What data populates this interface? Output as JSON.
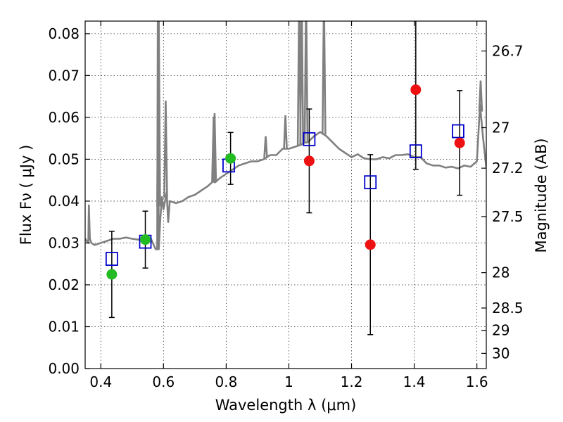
{
  "chart_data": {
    "type": "scatter",
    "title": "",
    "xlabel": "Wavelength  λ (μm)",
    "ylabel": "Flux  Fν  ( μJy )",
    "y2label": "Magnitude (AB)",
    "xlim": [
      0.35,
      1.63
    ],
    "ylim": [
      0.0,
      0.083
    ],
    "grid": true,
    "x_ticks": [
      {
        "value": 0.4,
        "label": "0.4"
      },
      {
        "value": 0.6,
        "label": "0.6"
      },
      {
        "value": 0.8,
        "label": "0.8"
      },
      {
        "value": 1.0,
        "label": "1"
      },
      {
        "value": 1.2,
        "label": "1.2"
      },
      {
        "value": 1.4,
        "label": "1.4"
      },
      {
        "value": 1.6,
        "label": "1.6"
      }
    ],
    "y_ticks": [
      {
        "value": 0.0,
        "label": "0.00"
      },
      {
        "value": 0.01,
        "label": "0.01"
      },
      {
        "value": 0.02,
        "label": "0.02"
      },
      {
        "value": 0.03,
        "label": "0.03"
      },
      {
        "value": 0.04,
        "label": "0.04"
      },
      {
        "value": 0.05,
        "label": "0.05"
      },
      {
        "value": 0.06,
        "label": "0.06"
      },
      {
        "value": 0.07,
        "label": "0.07"
      },
      {
        "value": 0.08,
        "label": "0.08"
      }
    ],
    "y2_ticks": [
      {
        "value": 26.7,
        "label": "26.7"
      },
      {
        "value": 27.0,
        "label": "27"
      },
      {
        "value": 27.2,
        "label": "27.2"
      },
      {
        "value": 27.5,
        "label": "27.5"
      },
      {
        "value": 28.0,
        "label": "28"
      },
      {
        "value": 28.5,
        "label": "28.5"
      },
      {
        "value": 29.0,
        "label": "29"
      },
      {
        "value": 30.0,
        "label": "30"
      }
    ],
    "colors": {
      "model": "#808080",
      "observed_optical": "#22bb22",
      "observed_ir": "#ee1111",
      "model_box": "#0000cc",
      "errorbar": "#000000"
    },
    "observed": [
      {
        "x": 0.435,
        "y": 0.0225,
        "err": 0.0103,
        "band": "optical"
      },
      {
        "x": 0.542,
        "y": 0.0308,
        "err": 0.0068,
        "band": "optical"
      },
      {
        "x": 0.814,
        "y": 0.0502,
        "err": 0.0062,
        "band": "optical"
      },
      {
        "x": 1.065,
        "y": 0.0496,
        "err": 0.0124,
        "band": "ir"
      },
      {
        "x": 1.26,
        "y": 0.0296,
        "err": 0.0215,
        "band": "ir"
      },
      {
        "x": 1.405,
        "y": 0.0666,
        "err": 0.019,
        "band": "ir"
      },
      {
        "x": 1.545,
        "y": 0.0539,
        "err": 0.0125,
        "band": "ir"
      }
    ],
    "model_photometry": [
      {
        "x": 0.435,
        "y": 0.0262
      },
      {
        "x": 0.542,
        "y": 0.0303
      },
      {
        "x": 0.808,
        "y": 0.0485
      },
      {
        "x": 1.065,
        "y": 0.0548
      },
      {
        "x": 1.26,
        "y": 0.0445
      },
      {
        "x": 1.405,
        "y": 0.0519
      },
      {
        "x": 1.54,
        "y": 0.0567
      }
    ],
    "model_spectrum": {
      "x": [
        0.35,
        0.36,
        0.362,
        0.365,
        0.37,
        0.38,
        0.4,
        0.42,
        0.44,
        0.46,
        0.48,
        0.5,
        0.52,
        0.54,
        0.56,
        0.575,
        0.58,
        0.582,
        0.585,
        0.59,
        0.595,
        0.6,
        0.61,
        0.615,
        0.62,
        0.64,
        0.66,
        0.68,
        0.7,
        0.72,
        0.74,
        0.755,
        0.76,
        0.762,
        0.765,
        0.78,
        0.8,
        0.82,
        0.84,
        0.86,
        0.88,
        0.9,
        0.92,
        0.94,
        0.96,
        0.98,
        1.0,
        1.02,
        1.04,
        1.05,
        1.06,
        1.08,
        1.1,
        1.12,
        1.14,
        1.16,
        1.18,
        1.2,
        1.22,
        1.24,
        1.26,
        1.28,
        1.3,
        1.32,
        1.34,
        1.36,
        1.38,
        1.4,
        1.42,
        1.44,
        1.46,
        1.48,
        1.5,
        1.52,
        1.54,
        1.56,
        1.58,
        1.6,
        1.61,
        1.62,
        1.63
      ],
      "y": [
        0.031,
        0.03,
        0.039,
        0.031,
        0.03,
        0.0295,
        0.03,
        0.0305,
        0.031,
        0.031,
        0.0313,
        0.031,
        0.0308,
        0.0313,
        0.031,
        0.0285,
        0.0285,
        0.09,
        0.0285,
        0.036,
        0.041,
        0.038,
        0.042,
        0.035,
        0.04,
        0.0395,
        0.04,
        0.041,
        0.0415,
        0.0425,
        0.0435,
        0.0445,
        0.06,
        0.0445,
        0.0445,
        0.0455,
        0.0465,
        0.0475,
        0.0485,
        0.049,
        0.0495,
        0.0495,
        0.05,
        0.051,
        0.051,
        0.0525,
        0.0525,
        0.053,
        0.0535,
        0.054,
        0.054,
        0.0555,
        0.0565,
        0.0555,
        0.054,
        0.0525,
        0.0515,
        0.0505,
        0.0512,
        0.0502,
        0.05,
        0.05,
        0.0505,
        0.0502,
        0.051,
        0.051,
        0.0512,
        0.0505,
        0.0505,
        0.049,
        0.0485,
        0.0485,
        0.048,
        0.0482,
        0.0478,
        0.0485,
        0.0482,
        0.0495,
        0.063,
        0.055,
        0.048
      ]
    },
    "emission_lines": [
      {
        "x": 0.5845,
        "y": 0.09
      },
      {
        "x": 0.607,
        "y": 0.064
      },
      {
        "x": 0.763,
        "y": 0.061
      },
      {
        "x": 0.926,
        "y": 0.0555
      },
      {
        "x": 0.989,
        "y": 0.0605
      },
      {
        "x": 1.033,
        "y": 0.09
      },
      {
        "x": 1.041,
        "y": 0.09
      },
      {
        "x": 1.055,
        "y": 0.09
      },
      {
        "x": 1.112,
        "y": 0.09
      },
      {
        "x": 1.612,
        "y": 0.0688
      }
    ]
  }
}
